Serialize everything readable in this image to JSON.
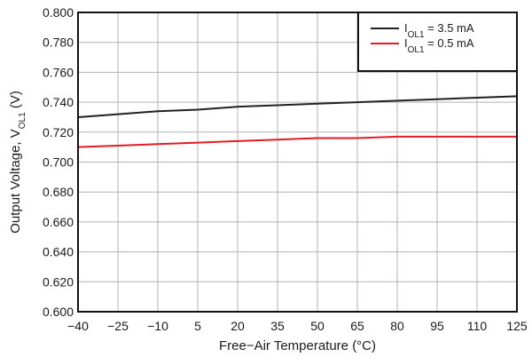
{
  "chart_data": {
    "type": "line",
    "xlabel": "Free−Air Temperature (°C)",
    "ylabel": {
      "main": "Output Voltage, V",
      "sub": "OL1",
      "unit": " (V)"
    },
    "xlim": [
      -40,
      125
    ],
    "ylim": [
      0.6,
      0.8
    ],
    "x_ticks": [
      "−40",
      "−25",
      "−10",
      "5",
      "20",
      "35",
      "50",
      "65",
      "80",
      "95",
      "110",
      "125"
    ],
    "y_ticks": [
      "0.600",
      "0.620",
      "0.640",
      "0.660",
      "0.680",
      "0.700",
      "0.720",
      "0.740",
      "0.760",
      "0.780",
      "0.800"
    ],
    "grid": true,
    "legend_position": "top-right",
    "series": [
      {
        "name": {
          "main": "I",
          "sub": "OL1",
          "rest": " = 3.5 mA"
        },
        "color": "#231f20",
        "x": [
          -40,
          -25,
          -10,
          5,
          20,
          35,
          50,
          65,
          80,
          95,
          110,
          125
        ],
        "values": [
          0.73,
          0.732,
          0.734,
          0.735,
          0.737,
          0.738,
          0.739,
          0.74,
          0.741,
          0.742,
          0.743,
          0.744
        ]
      },
      {
        "name": {
          "main": "I",
          "sub": "OL1",
          "rest": " = 0.5 mA"
        },
        "color": "#e31b23",
        "x": [
          -40,
          -25,
          -10,
          5,
          20,
          35,
          50,
          65,
          80,
          95,
          110,
          125
        ],
        "values": [
          0.71,
          0.711,
          0.712,
          0.713,
          0.714,
          0.715,
          0.716,
          0.716,
          0.717,
          0.717,
          0.717,
          0.717
        ]
      }
    ]
  }
}
